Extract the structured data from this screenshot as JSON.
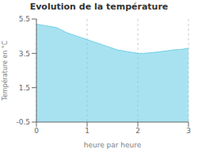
{
  "chart_data": {
    "type": "area",
    "title": "Evolution de la température",
    "xlabel": "heure par heure",
    "ylabel": "Température en °C",
    "x": [
      0,
      0.1,
      0.2,
      0.3,
      0.4,
      0.5,
      0.6,
      0.7,
      0.8,
      0.9,
      1.0,
      1.1,
      1.2,
      1.3,
      1.4,
      1.5,
      1.6,
      1.7,
      1.8,
      1.9,
      2.0,
      2.1,
      2.2,
      2.3,
      2.4,
      2.5,
      2.6,
      2.7,
      2.8,
      2.9,
      3.0
    ],
    "values": [
      5.2,
      5.15,
      5.1,
      5.05,
      5.0,
      4.85,
      4.7,
      4.6,
      4.5,
      4.4,
      4.3,
      4.2,
      4.1,
      4.0,
      3.9,
      3.8,
      3.7,
      3.65,
      3.6,
      3.55,
      3.5,
      3.5,
      3.52,
      3.55,
      3.58,
      3.62,
      3.65,
      3.7,
      3.72,
      3.75,
      3.8
    ],
    "color": "#6ecfe8",
    "xlim": [
      0,
      3
    ],
    "ylim": [
      -0.5,
      5.5
    ],
    "xticks": [
      0,
      1,
      2,
      3
    ],
    "yticks": [
      -0.5,
      1.5,
      3.5,
      5.5
    ],
    "grid": true
  }
}
